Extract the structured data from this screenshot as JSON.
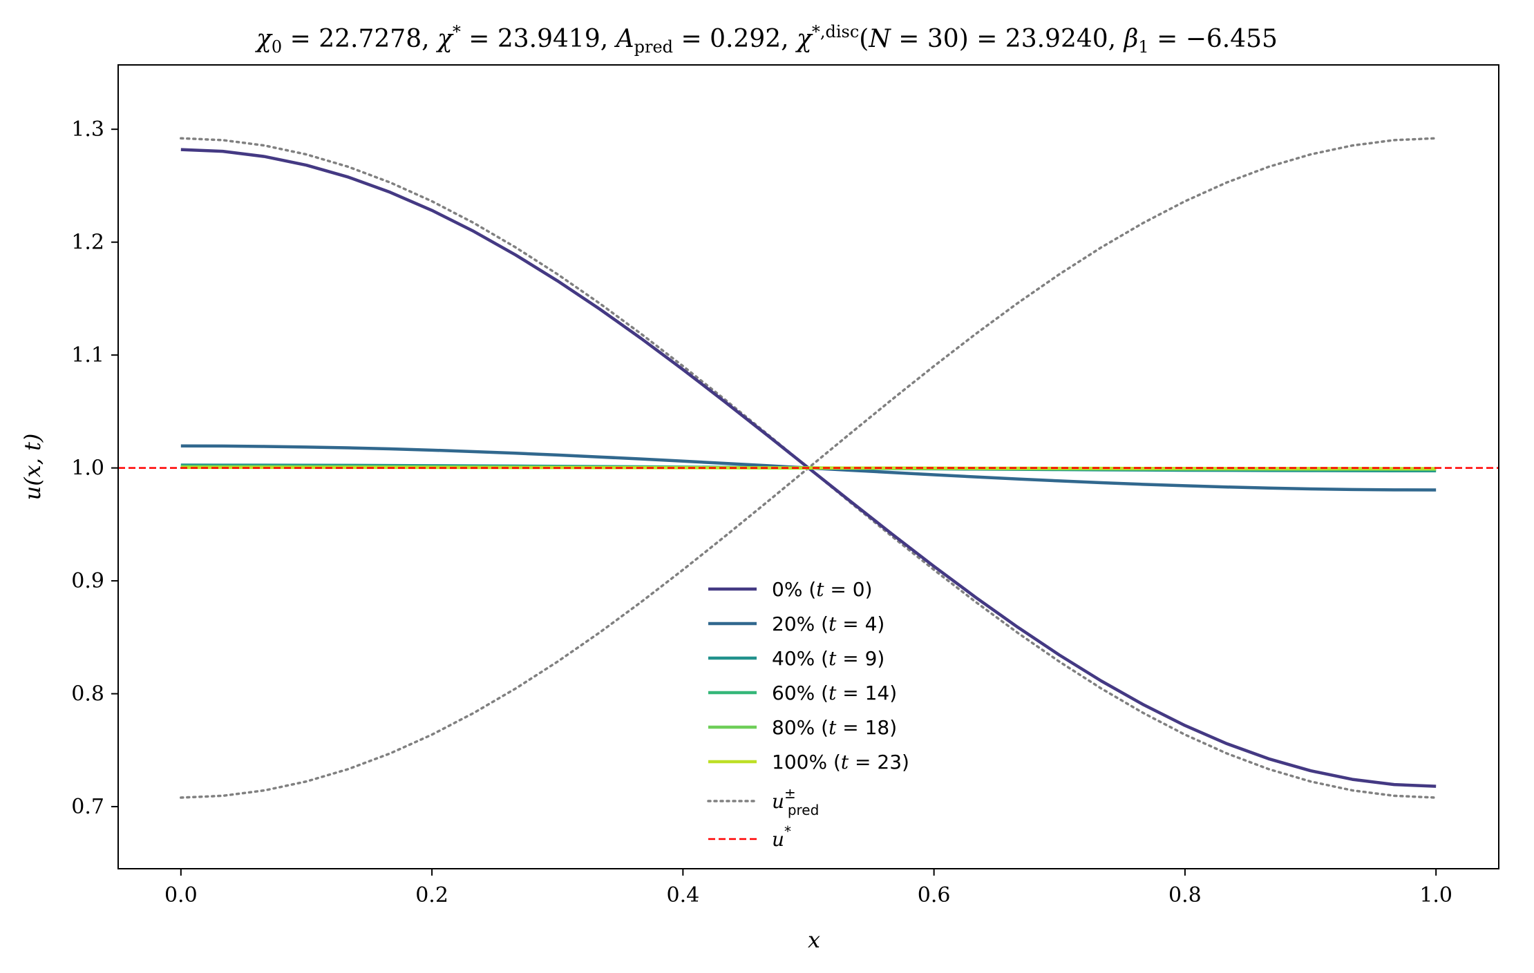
{
  "chart_data": {
    "type": "line",
    "title": "χ₀ = 22.7278,  χ* = 23.9419,  A_pred = 0.292,  χ^{*,disc}(N = 30) = 23.9240,  β₁ = −6.455",
    "xlabel": "x",
    "ylabel": "u(x, t)",
    "xlim": [
      -0.05,
      1.05
    ],
    "ylim": [
      0.645,
      1.357
    ],
    "xticks": [
      0.0,
      0.2,
      0.4,
      0.6,
      0.8,
      1.0
    ],
    "xtick_labels": [
      "0.0",
      "0.2",
      "0.4",
      "0.6",
      "0.8",
      "1.0"
    ],
    "yticks": [
      0.7,
      0.8,
      0.9,
      1.0,
      1.1,
      1.2,
      1.3
    ],
    "ytick_labels": [
      "0.7",
      "0.8",
      "0.9",
      "1.0",
      "1.1",
      "1.2",
      "1.3"
    ],
    "grid": false,
    "legend_position": "lower-center",
    "curve_shape": "cosine profile u(x) = 1 + A·cos(πx)",
    "series": [
      {
        "name": "0% (t = 0)",
        "amplitude": 0.282,
        "color": "#443983",
        "style": "solid"
      },
      {
        "name": "20% (t = 4)",
        "amplitude": 0.0195,
        "color": "#31688e",
        "style": "solid"
      },
      {
        "name": "40% (t = 9)",
        "amplitude": 0.0025,
        "color": "#21918c",
        "style": "solid"
      },
      {
        "name": "60% (t = 14)",
        "amplitude": 0.0015,
        "color": "#35b779",
        "style": "solid"
      },
      {
        "name": "80% (t = 18)",
        "amplitude": 0.001,
        "color": "#6ece58",
        "style": "solid"
      },
      {
        "name": "100% (t = 23)",
        "amplitude": 0.0005,
        "color": "#bddf26",
        "style": "solid"
      },
      {
        "name": "u±pred",
        "amplitude": 0.292,
        "mirror": true,
        "color": "#808080",
        "style": "dotted"
      },
      {
        "name": "u*",
        "constant": 1.0,
        "color": "#ff0000",
        "style": "dashed"
      }
    ]
  }
}
